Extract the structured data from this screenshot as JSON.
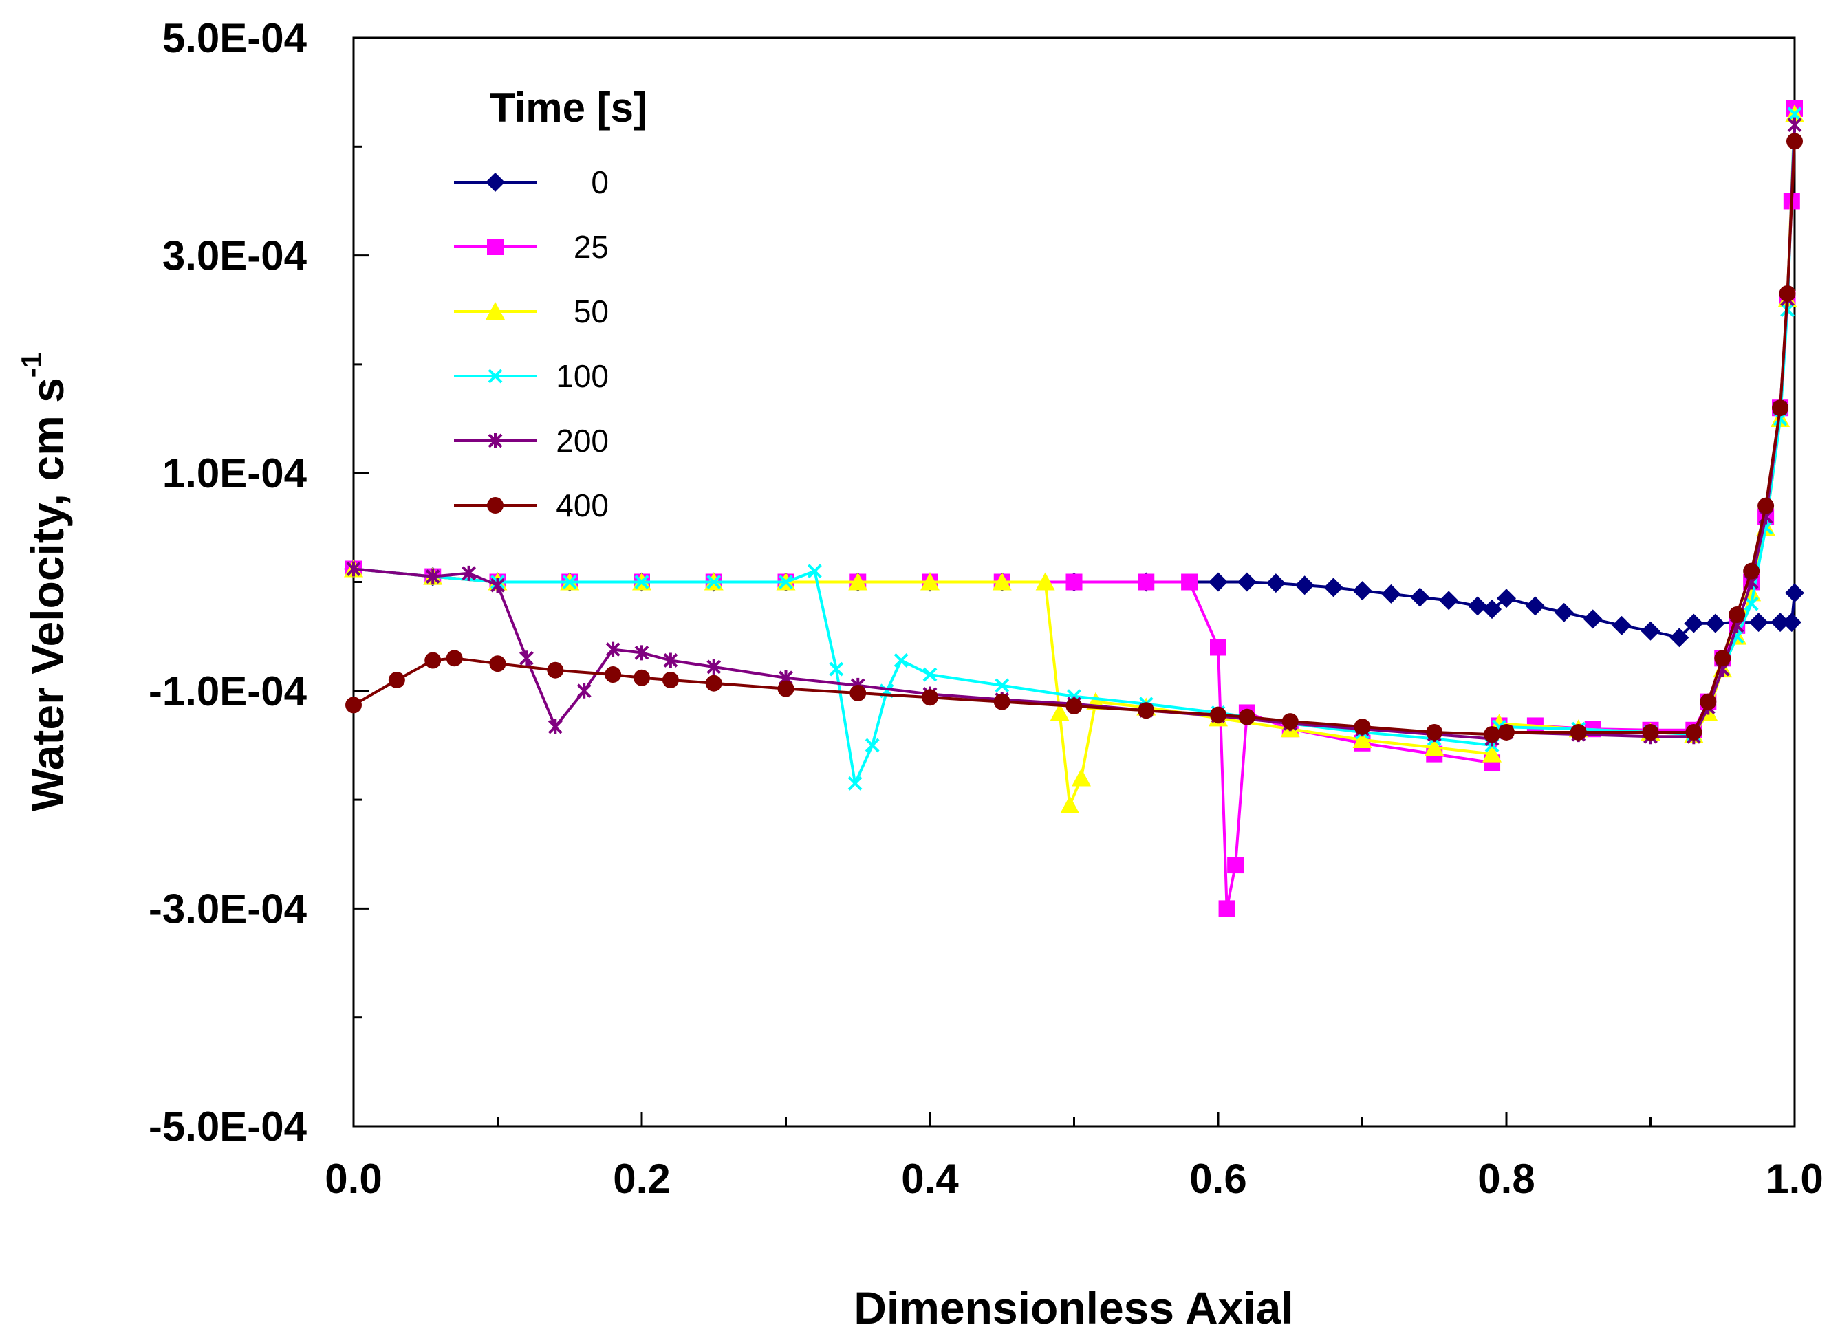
{
  "chart_data": {
    "type": "line",
    "title": "",
    "xlabel": "Dimensionless Axial",
    "ylabel": "Water Velocity, cm s",
    "ylabel_superscript": "-1",
    "xlim": [
      0,
      1
    ],
    "ylim": [
      -0.0005,
      0.0005
    ],
    "x_ticks": [
      0,
      0.2,
      0.4,
      0.6,
      0.8,
      1
    ],
    "x_tick_labels": [
      "0.0",
      "0.2",
      "0.4",
      "0.6",
      "0.8",
      "1.0"
    ],
    "y_ticks": [
      0.0005,
      0.0003,
      0.0001,
      -0.0001,
      -0.0003,
      -0.0005
    ],
    "y_tick_labels": [
      "5.0E-04",
      "3.0E-04",
      "1.0E-04",
      "-1.0E-04",
      "-3.0E-04",
      "-5.0E-04"
    ],
    "grid": false,
    "legend": {
      "title": "Time  [s]",
      "position": "top-left"
    },
    "series": [
      {
        "name": "0",
        "color": "#000080",
        "marker": "diamond",
        "points": [
          [
            0.0,
            1.2e-05
          ],
          [
            0.055,
            5e-06
          ],
          [
            0.1,
            0.0
          ],
          [
            0.15,
            0.0
          ],
          [
            0.2,
            0.0
          ],
          [
            0.25,
            0.0
          ],
          [
            0.3,
            0.0
          ],
          [
            0.35,
            0.0
          ],
          [
            0.4,
            0.0
          ],
          [
            0.45,
            0.0
          ],
          [
            0.5,
            0.0
          ],
          [
            0.55,
            0.0
          ],
          [
            0.6,
            0.0
          ],
          [
            0.62,
            0.0
          ],
          [
            0.64,
            -1e-06
          ],
          [
            0.66,
            -3e-06
          ],
          [
            0.68,
            -5e-06
          ],
          [
            0.7,
            -8e-06
          ],
          [
            0.72,
            -1.1e-05
          ],
          [
            0.74,
            -1.4e-05
          ],
          [
            0.76,
            -1.7e-05
          ],
          [
            0.78,
            -2.2e-05
          ],
          [
            0.79,
            -2.5e-05
          ],
          [
            0.8,
            -1.5e-05
          ],
          [
            0.82,
            -2.2e-05
          ],
          [
            0.84,
            -2.8e-05
          ],
          [
            0.86,
            -3.4e-05
          ],
          [
            0.88,
            -4e-05
          ],
          [
            0.9,
            -4.5e-05
          ],
          [
            0.92,
            -5.1e-05
          ],
          [
            0.93,
            -3.8e-05
          ],
          [
            0.945,
            -3.8e-05
          ],
          [
            0.96,
            -3.7e-05
          ],
          [
            0.975,
            -3.7e-05
          ],
          [
            0.99,
            -3.7e-05
          ],
          [
            0.998,
            -3.7e-05
          ],
          [
            1.0,
            -1e-05
          ]
        ]
      },
      {
        "name": "25",
        "color": "#ff00ff",
        "marker": "square",
        "points": [
          [
            0.0,
            1.2e-05
          ],
          [
            0.055,
            5e-06
          ],
          [
            0.1,
            0.0
          ],
          [
            0.15,
            0.0
          ],
          [
            0.2,
            0.0
          ],
          [
            0.25,
            0.0
          ],
          [
            0.3,
            0.0
          ],
          [
            0.35,
            0.0
          ],
          [
            0.4,
            0.0
          ],
          [
            0.45,
            0.0
          ],
          [
            0.5,
            0.0
          ],
          [
            0.55,
            0.0
          ],
          [
            0.58,
            0.0
          ],
          [
            0.6,
            -6e-05
          ],
          [
            0.606,
            -0.0003
          ],
          [
            0.612,
            -0.00026
          ],
          [
            0.62,
            -0.00012
          ],
          [
            0.65,
            -0.000135
          ],
          [
            0.7,
            -0.000148
          ],
          [
            0.75,
            -0.000158
          ],
          [
            0.79,
            -0.000166
          ],
          [
            0.795,
            -0.000132
          ],
          [
            0.82,
            -0.000132
          ],
          [
            0.86,
            -0.000135
          ],
          [
            0.9,
            -0.000136
          ],
          [
            0.93,
            -0.000136
          ],
          [
            0.94,
            -0.00011
          ],
          [
            0.95,
            -7e-05
          ],
          [
            0.96,
            -4e-05
          ],
          [
            0.97,
            0.0
          ],
          [
            0.98,
            6e-05
          ],
          [
            0.99,
            0.00016
          ],
          [
            0.995,
            0.00026
          ],
          [
            0.998,
            0.00035
          ],
          [
            1.0,
            0.000435
          ]
        ]
      },
      {
        "name": "50",
        "color": "#ffff00",
        "marker": "triangle",
        "points": [
          [
            0.0,
            1.2e-05
          ],
          [
            0.055,
            5e-06
          ],
          [
            0.1,
            0.0
          ],
          [
            0.15,
            0.0
          ],
          [
            0.2,
            0.0
          ],
          [
            0.25,
            0.0
          ],
          [
            0.3,
            0.0
          ],
          [
            0.35,
            0.0
          ],
          [
            0.4,
            0.0
          ],
          [
            0.45,
            0.0
          ],
          [
            0.48,
            0.0
          ],
          [
            0.49,
            -0.00012
          ],
          [
            0.497,
            -0.000205
          ],
          [
            0.505,
            -0.00018
          ],
          [
            0.515,
            -0.00011
          ],
          [
            0.55,
            -0.000115
          ],
          [
            0.6,
            -0.000125
          ],
          [
            0.65,
            -0.000135
          ],
          [
            0.7,
            -0.000145
          ],
          [
            0.75,
            -0.000152
          ],
          [
            0.79,
            -0.000158
          ],
          [
            0.795,
            -0.00013
          ],
          [
            0.85,
            -0.000135
          ],
          [
            0.9,
            -0.000138
          ],
          [
            0.93,
            -0.00014
          ],
          [
            0.94,
            -0.00012
          ],
          [
            0.95,
            -8e-05
          ],
          [
            0.96,
            -5e-05
          ],
          [
            0.97,
            -1e-05
          ],
          [
            0.98,
            5e-05
          ],
          [
            0.99,
            0.00015
          ],
          [
            0.995,
            0.00026
          ],
          [
            1.0,
            0.00043
          ]
        ]
      },
      {
        "name": "100",
        "color": "#00ffff",
        "marker": "x",
        "points": [
          [
            0.0,
            1.2e-05
          ],
          [
            0.055,
            5e-06
          ],
          [
            0.1,
            0.0
          ],
          [
            0.15,
            0.0
          ],
          [
            0.2,
            0.0
          ],
          [
            0.25,
            0.0
          ],
          [
            0.3,
            0.0
          ],
          [
            0.32,
            1e-05
          ],
          [
            0.335,
            -8e-05
          ],
          [
            0.348,
            -0.000185
          ],
          [
            0.36,
            -0.00015
          ],
          [
            0.37,
            -0.0001
          ],
          [
            0.38,
            -7.2e-05
          ],
          [
            0.4,
            -8.5e-05
          ],
          [
            0.45,
            -9.5e-05
          ],
          [
            0.5,
            -0.000105
          ],
          [
            0.55,
            -0.000112
          ],
          [
            0.6,
            -0.00012
          ],
          [
            0.65,
            -0.00013
          ],
          [
            0.7,
            -0.000138
          ],
          [
            0.75,
            -0.000144
          ],
          [
            0.79,
            -0.00015
          ],
          [
            0.795,
            -0.000133
          ],
          [
            0.85,
            -0.000135
          ],
          [
            0.9,
            -0.000138
          ],
          [
            0.93,
            -0.00014
          ],
          [
            0.94,
            -0.000115
          ],
          [
            0.95,
            -8e-05
          ],
          [
            0.96,
            -5e-05
          ],
          [
            0.97,
            -2e-05
          ],
          [
            0.98,
            5e-05
          ],
          [
            0.99,
            0.00015
          ],
          [
            0.995,
            0.00025
          ],
          [
            1.0,
            0.00043
          ]
        ]
      },
      {
        "name": "200",
        "color": "#800080",
        "marker": "star",
        "points": [
          [
            0.0,
            1.2e-05
          ],
          [
            0.055,
            5e-06
          ],
          [
            0.08,
            8e-06
          ],
          [
            0.1,
            -3e-06
          ],
          [
            0.12,
            -7e-05
          ],
          [
            0.14,
            -0.000133
          ],
          [
            0.16,
            -0.0001
          ],
          [
            0.18,
            -6.2e-05
          ],
          [
            0.2,
            -6.5e-05
          ],
          [
            0.22,
            -7.2e-05
          ],
          [
            0.25,
            -7.8e-05
          ],
          [
            0.3,
            -8.8e-05
          ],
          [
            0.35,
            -9.5e-05
          ],
          [
            0.4,
            -0.000103
          ],
          [
            0.45,
            -0.000108
          ],
          [
            0.5,
            -0.000112
          ],
          [
            0.55,
            -0.000118
          ],
          [
            0.6,
            -0.000123
          ],
          [
            0.65,
            -0.00013
          ],
          [
            0.7,
            -0.000135
          ],
          [
            0.75,
            -0.00014
          ],
          [
            0.79,
            -0.000144
          ],
          [
            0.8,
            -0.000138
          ],
          [
            0.85,
            -0.00014
          ],
          [
            0.9,
            -0.000142
          ],
          [
            0.93,
            -0.000142
          ],
          [
            0.94,
            -0.000115
          ],
          [
            0.95,
            -8e-05
          ],
          [
            0.96,
            -4e-05
          ],
          [
            0.97,
            0.0
          ],
          [
            0.98,
            6e-05
          ],
          [
            0.99,
            0.00016
          ],
          [
            0.995,
            0.00026
          ],
          [
            1.0,
            0.00042
          ]
        ]
      },
      {
        "name": "400",
        "color": "#800000",
        "marker": "circle",
        "points": [
          [
            0.0,
            -0.000113
          ],
          [
            0.03,
            -9e-05
          ],
          [
            0.055,
            -7.2e-05
          ],
          [
            0.07,
            -7e-05
          ],
          [
            0.1,
            -7.5e-05
          ],
          [
            0.14,
            -8.1e-05
          ],
          [
            0.18,
            -8.5e-05
          ],
          [
            0.2,
            -8.8e-05
          ],
          [
            0.22,
            -9e-05
          ],
          [
            0.25,
            -9.3e-05
          ],
          [
            0.3,
            -9.8e-05
          ],
          [
            0.35,
            -0.000102
          ],
          [
            0.4,
            -0.000106
          ],
          [
            0.45,
            -0.00011
          ],
          [
            0.5,
            -0.000114
          ],
          [
            0.55,
            -0.000118
          ],
          [
            0.6,
            -0.000122
          ],
          [
            0.62,
            -0.000124
          ],
          [
            0.65,
            -0.000128
          ],
          [
            0.7,
            -0.000133
          ],
          [
            0.75,
            -0.000138
          ],
          [
            0.79,
            -0.00014
          ],
          [
            0.8,
            -0.000138
          ],
          [
            0.85,
            -0.000138
          ],
          [
            0.9,
            -0.000138
          ],
          [
            0.93,
            -0.000138
          ],
          [
            0.94,
            -0.00011
          ],
          [
            0.95,
            -7e-05
          ],
          [
            0.96,
            -3e-05
          ],
          [
            0.97,
            1e-05
          ],
          [
            0.98,
            7e-05
          ],
          [
            0.99,
            0.00016
          ],
          [
            0.995,
            0.000265
          ],
          [
            1.0,
            0.000405
          ]
        ]
      }
    ]
  }
}
